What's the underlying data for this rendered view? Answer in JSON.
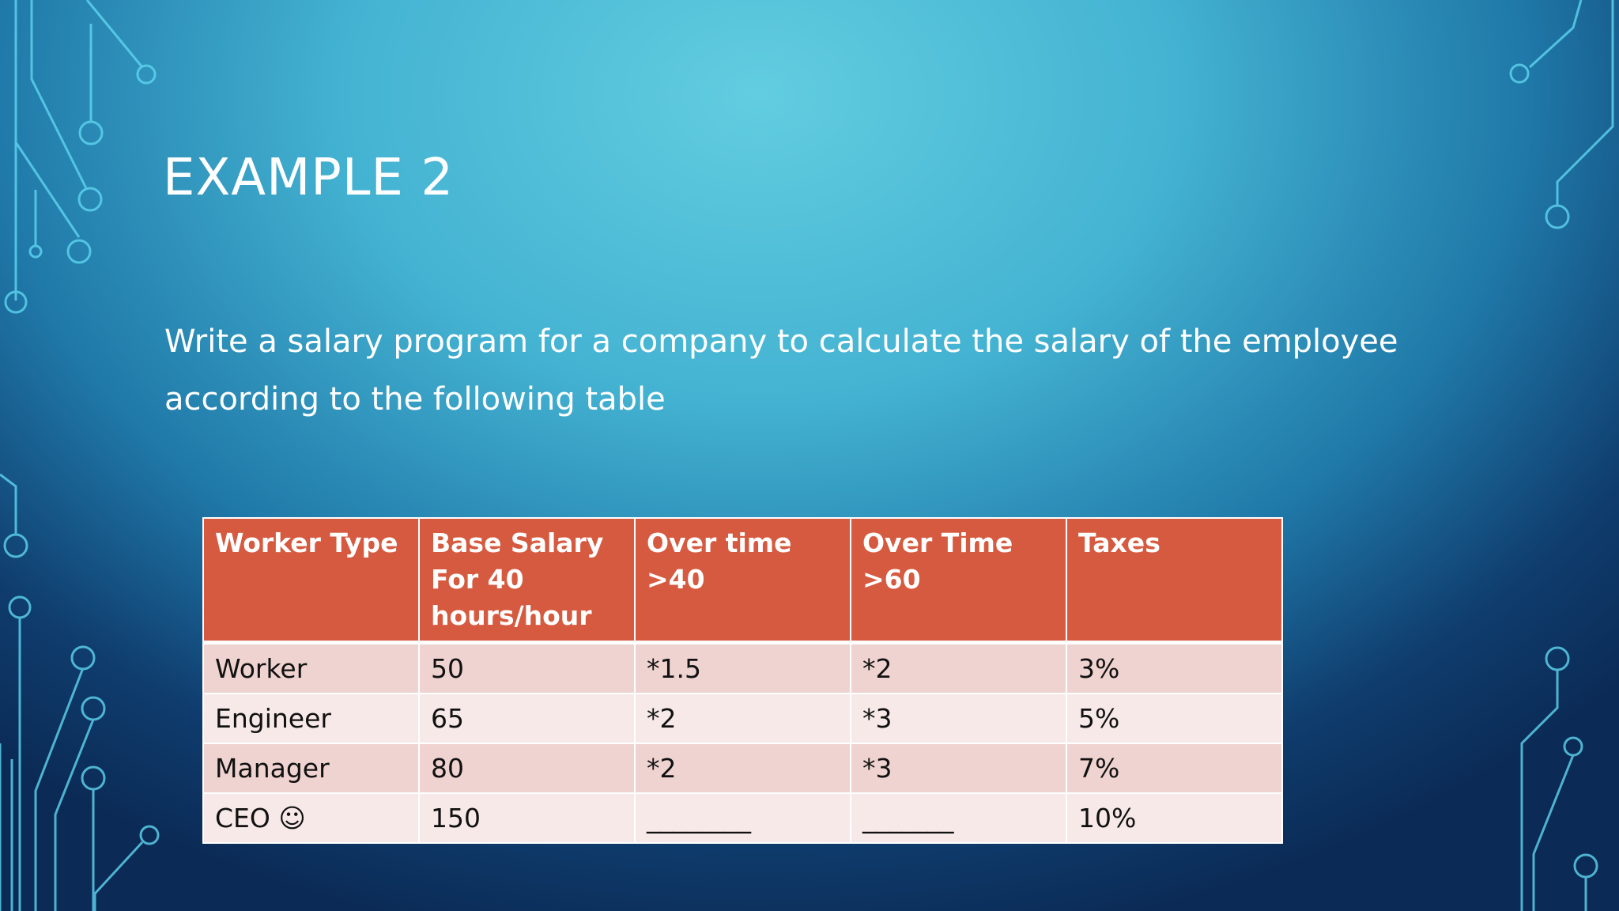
{
  "header": {
    "title": "EXAMPLE 2"
  },
  "body": {
    "text": "Write a salary program for a company to calculate the salary of the employee according to the following table"
  },
  "table": {
    "columns": [
      "Worker Type",
      "Base Salary For 40 hours/hour",
      "Over time >40",
      "Over Time >60",
      "Taxes"
    ],
    "rows": [
      [
        "Worker",
        "50",
        "*1.5",
        "*2",
        "3%"
      ],
      [
        "Engineer",
        "65",
        "*2",
        "*3",
        "5%"
      ],
      [
        "Manager",
        "80",
        "*2",
        "*3",
        "7%"
      ],
      [
        "CEO ☺",
        "150",
        "________",
        "_______",
        "10%"
      ]
    ]
  }
}
